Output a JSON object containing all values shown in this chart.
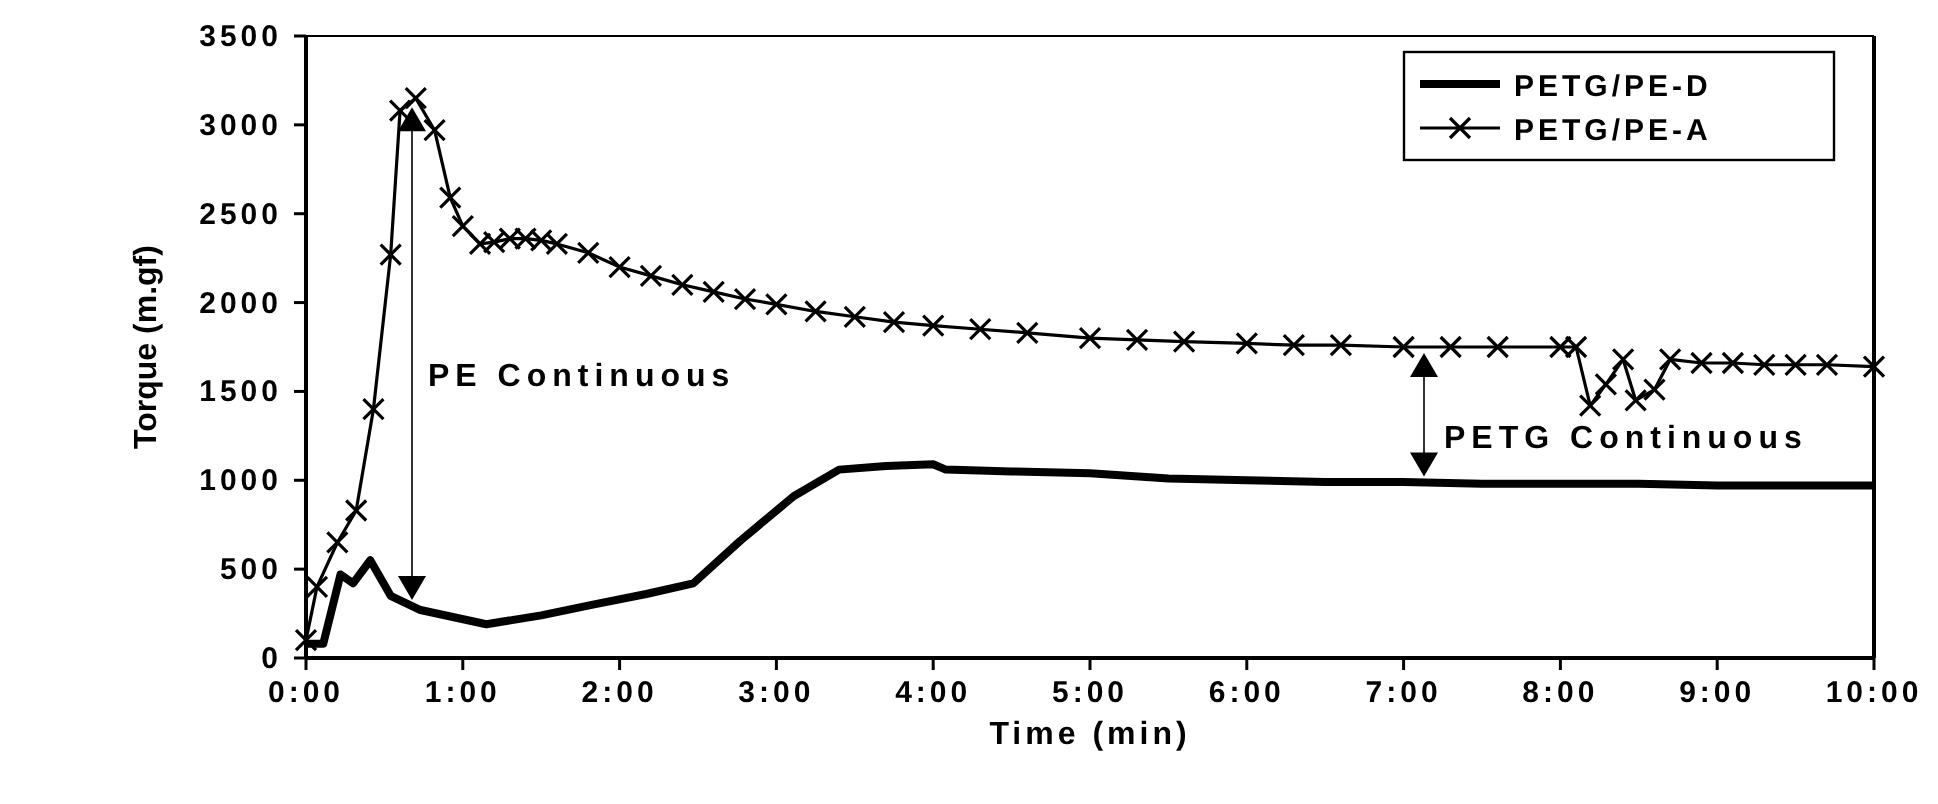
{
  "chart_data": {
    "type": "line",
    "xlabel": "Time (min)",
    "ylabel": "Torque (m.gf)",
    "xlim": [
      0,
      10
    ],
    "ylim": [
      0,
      3500
    ],
    "xticks": [
      {
        "value": 0,
        "label": "0:00"
      },
      {
        "value": 1,
        "label": "1:00"
      },
      {
        "value": 2,
        "label": "2:00"
      },
      {
        "value": 3,
        "label": "3:00"
      },
      {
        "value": 4,
        "label": "4:00"
      },
      {
        "value": 5,
        "label": "5:00"
      },
      {
        "value": 6,
        "label": "6:00"
      },
      {
        "value": 7,
        "label": "7:00"
      },
      {
        "value": 8,
        "label": "8:00"
      },
      {
        "value": 9,
        "label": "9:00"
      },
      {
        "value": 10,
        "label": "10:00"
      }
    ],
    "yticks": [
      0,
      500,
      1000,
      1500,
      2000,
      2500,
      3000,
      3500
    ],
    "grid": false,
    "legend": "top right",
    "line_style": "solid",
    "series": [
      {
        "name": "PETG/PE-D",
        "color": "#000000",
        "marker": "none",
        "x": [
          0,
          0.11,
          0.22,
          0.3,
          0.41,
          0.54,
          0.73,
          1.15,
          1.5,
          1.83,
          2.17,
          2.47,
          2.77,
          3.11,
          3.4,
          3.7,
          4.0,
          4.08,
          4.5,
          5.0,
          5.5,
          6.0,
          6.5,
          7.0,
          7.5,
          8.0,
          8.5,
          9.0,
          9.5,
          10.0
        ],
        "values": [
          80,
          80,
          470,
          420,
          550,
          350,
          270,
          190,
          240,
          300,
          360,
          420,
          660,
          910,
          1060,
          1080,
          1090,
          1060,
          1050,
          1040,
          1010,
          1000,
          990,
          990,
          980,
          980,
          980,
          970,
          970,
          970
        ]
      },
      {
        "name": "PETG/PE-A",
        "color": "#000000",
        "marker": "cross",
        "x": [
          0,
          0.07,
          0.2,
          0.32,
          0.43,
          0.54,
          0.6,
          0.7,
          0.82,
          0.92,
          1.0,
          1.11,
          1.2,
          1.3,
          1.4,
          1.5,
          1.6,
          1.8,
          2.0,
          2.2,
          2.4,
          2.6,
          2.8,
          3.0,
          3.25,
          3.5,
          3.75,
          4.0,
          4.3,
          4.6,
          5.0,
          5.3,
          5.6,
          6.0,
          6.3,
          6.6,
          7.0,
          7.3,
          7.6,
          8.0,
          8.1,
          8.19,
          8.29,
          8.4,
          8.48,
          8.6,
          8.7,
          8.9,
          9.1,
          9.3,
          9.5,
          9.7,
          10.0
        ],
        "values": [
          100,
          400,
          650,
          830,
          1400,
          2270,
          3080,
          3150,
          2970,
          2590,
          2430,
          2330,
          2340,
          2360,
          2360,
          2350,
          2330,
          2280,
          2200,
          2150,
          2100,
          2060,
          2020,
          1990,
          1950,
          1920,
          1890,
          1870,
          1850,
          1830,
          1800,
          1790,
          1780,
          1770,
          1760,
          1760,
          1750,
          1750,
          1750,
          1750,
          1750,
          1420,
          1540,
          1680,
          1450,
          1510,
          1680,
          1660,
          1660,
          1650,
          1650,
          1650,
          1640
        ]
      }
    ],
    "annotations": [
      "PE Continuous",
      "PETG Continuous"
    ]
  }
}
